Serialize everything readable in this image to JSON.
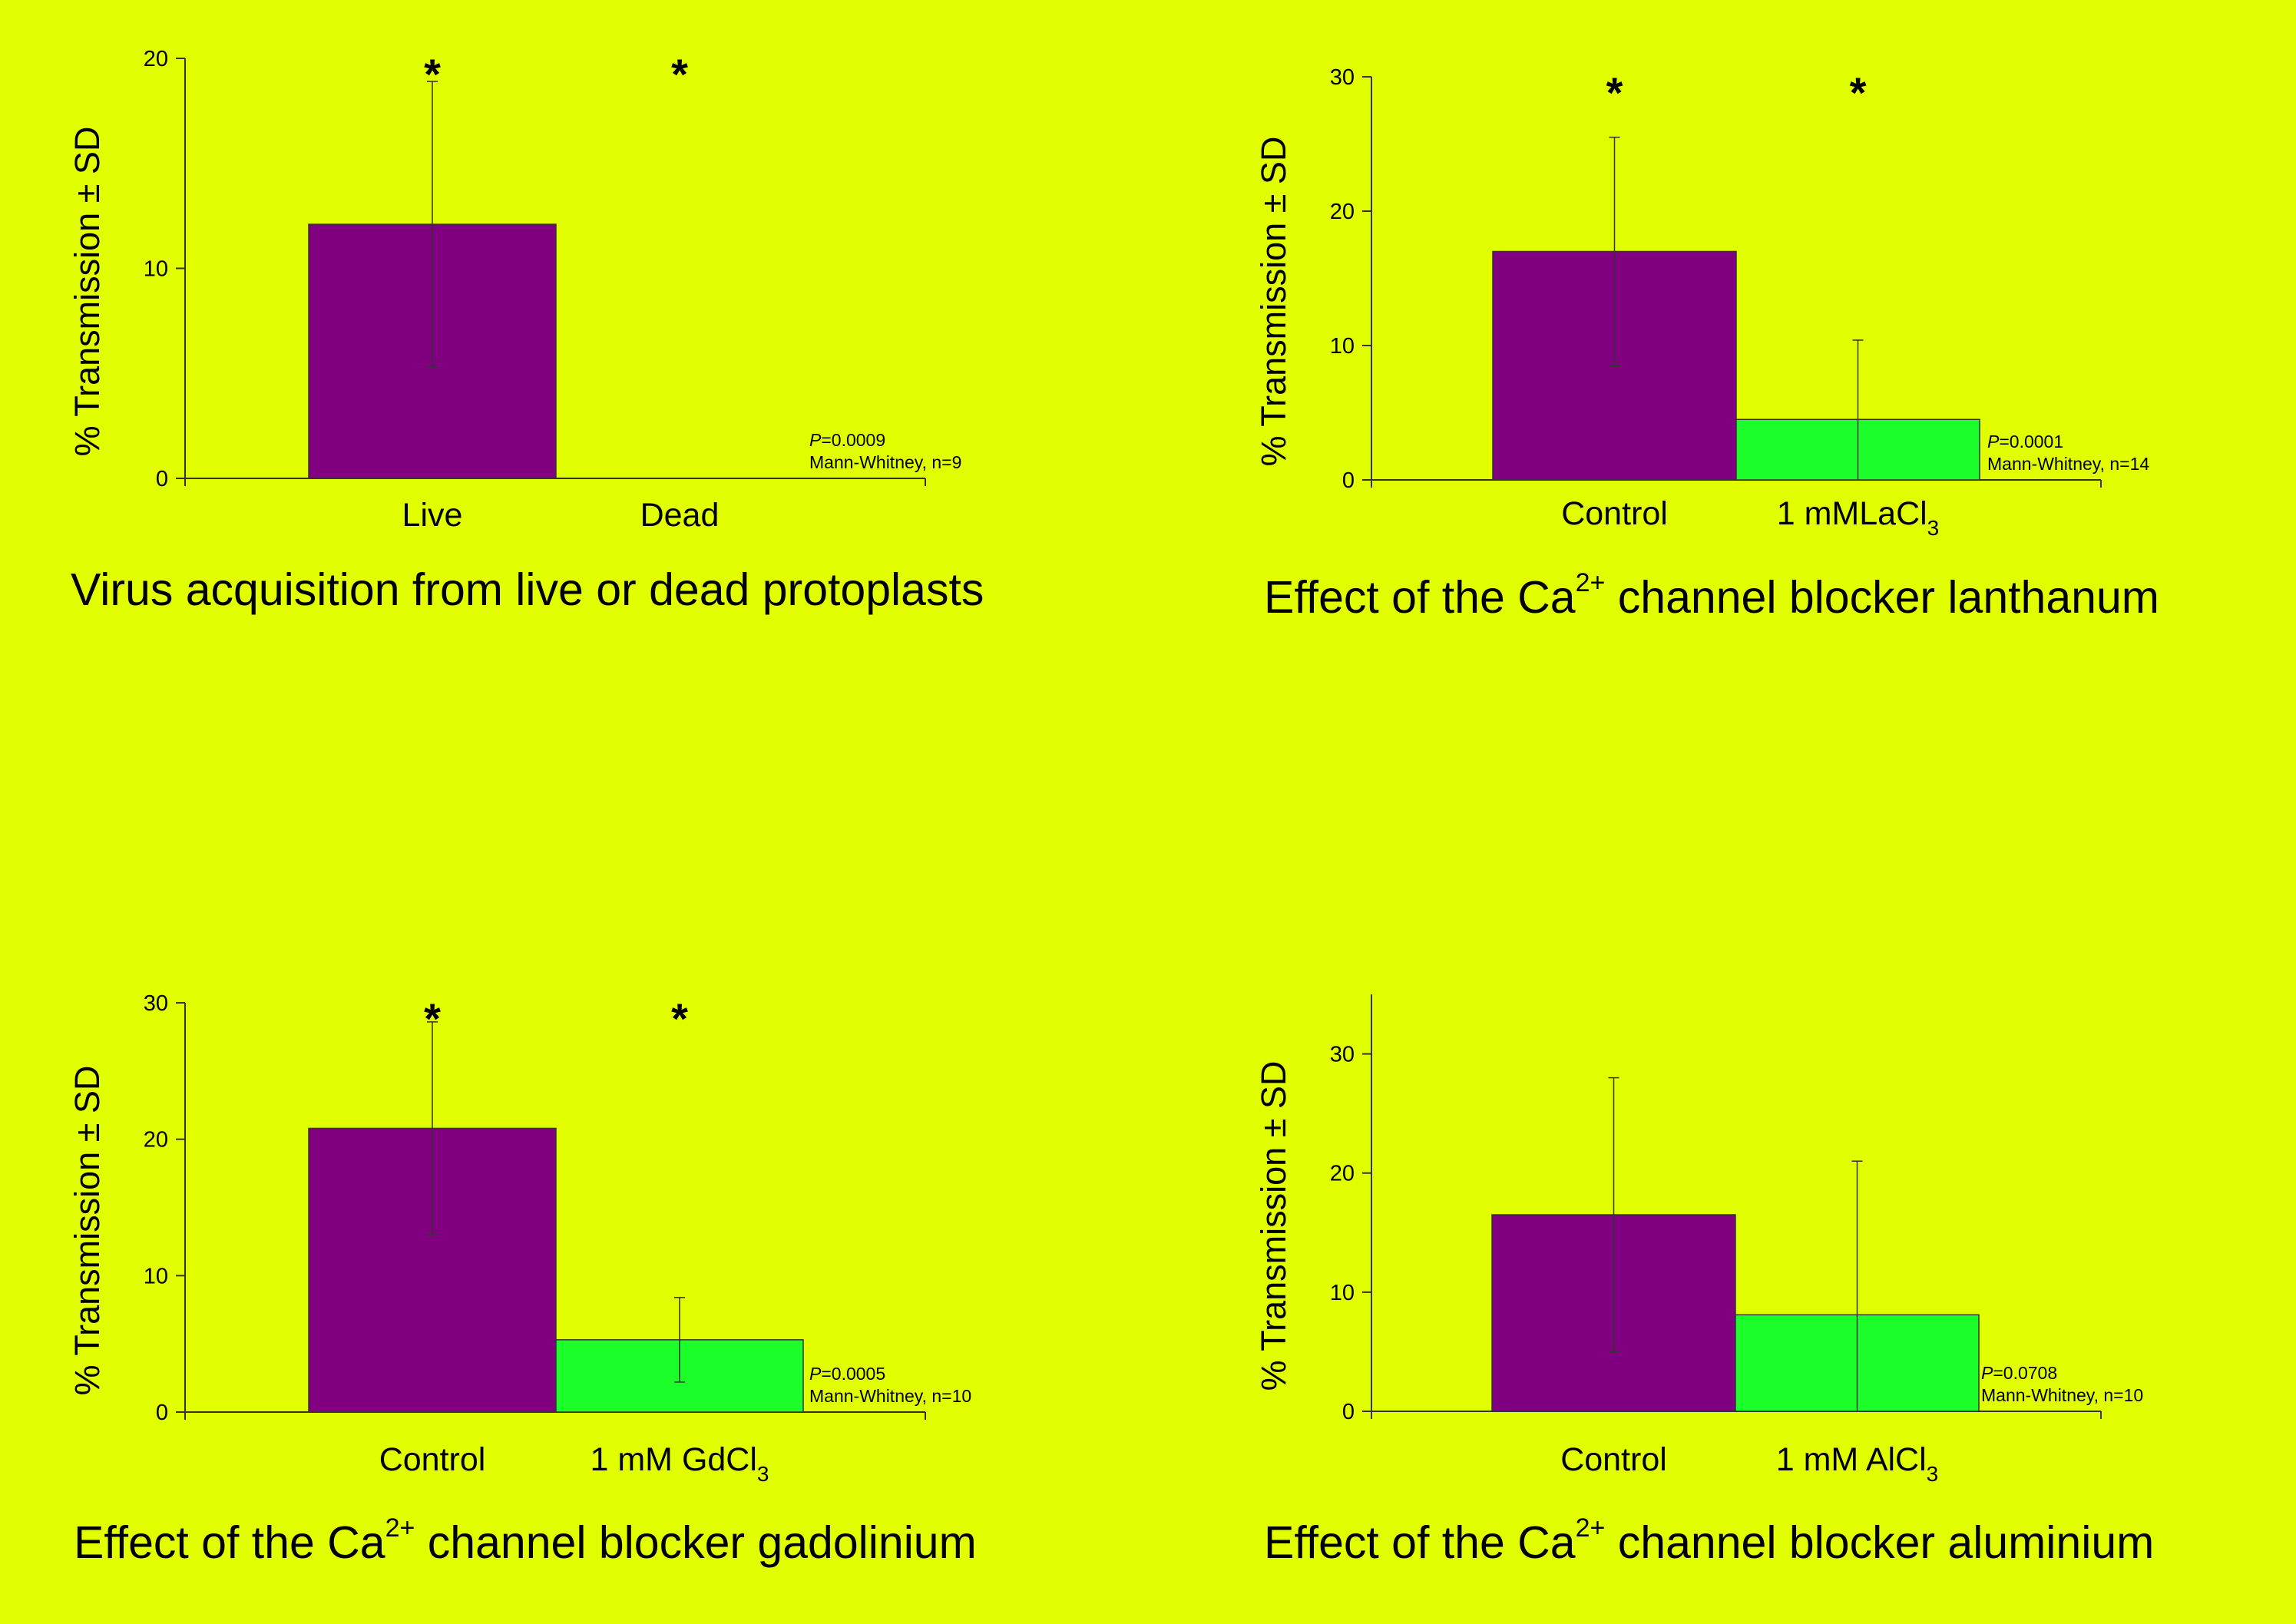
{
  "colors": {
    "background": "#e2ff00",
    "bar_primary": "#800080",
    "bar_secondary": "#1dff2a",
    "axis": "#333333"
  },
  "chart_data": [
    {
      "type": "bar",
      "categories": [
        "Live",
        "Dead"
      ],
      "values": [
        12.1,
        0
      ],
      "error_sd": [
        6.8,
        0
      ],
      "significance": [
        "*",
        "*"
      ],
      "ylabel": "% Transmission ± SD",
      "ylim": [
        0,
        20
      ],
      "yticks": [
        0,
        10,
        20
      ],
      "stats_p": "P",
      "stats_p_value": "=0.0009",
      "stats_test": "Mann-Whitney, n=9",
      "title": "Virus acquisition from live or dead protoplasts",
      "grid": false,
      "legend": "none"
    },
    {
      "type": "bar",
      "categories": [
        "Control",
        "1 mMLaCl3"
      ],
      "category_parts": [
        {
          "main": "Control",
          "sub": ""
        },
        {
          "main": "1 mMLaCl",
          "sub": "3"
        }
      ],
      "values": [
        17.0,
        4.5
      ],
      "error_sd": [
        8.5,
        5.9
      ],
      "significance": [
        "*",
        "*"
      ],
      "ylabel": "% Transmission ± SD",
      "ylim": [
        0,
        30
      ],
      "yticks": [
        0,
        10,
        20,
        30
      ],
      "stats_p": "P",
      "stats_p_value": "=0.0001",
      "stats_test": "Mann-Whitney, n=14",
      "title": "Effect of the Ca2+ channel blocker lanthanum",
      "title_parts": {
        "before": "Effect of the Ca",
        "sup": "2+",
        "after": " channel blocker lanthanum"
      },
      "grid": false,
      "legend": "none"
    },
    {
      "type": "bar",
      "categories": [
        "Control",
        "1 mM GdCl3"
      ],
      "category_parts": [
        {
          "main": "Control",
          "sub": ""
        },
        {
          "main": "1 mM GdCl",
          "sub": "3"
        }
      ],
      "values": [
        20.8,
        5.3
      ],
      "error_sd": [
        7.8,
        3.1
      ],
      "significance": [
        "*",
        "*"
      ],
      "ylabel": "% Transmission ± SD",
      "ylim": [
        0,
        30
      ],
      "yticks": [
        0,
        10,
        20,
        30
      ],
      "stats_p": "P",
      "stats_p_value": "=0.0005",
      "stats_test": "Mann-Whitney, n=10",
      "title": "Effect of the Ca2+ channel blocker gadolinium",
      "title_parts": {
        "before": "Effect of the Ca",
        "sup": "2+",
        "after": " channel blocker gadolinium"
      },
      "grid": false,
      "legend": "none"
    },
    {
      "type": "bar",
      "categories": [
        "Control",
        "1 mM AlCl3"
      ],
      "category_parts": [
        {
          "main": "Control",
          "sub": ""
        },
        {
          "main": "1 mM AlCl",
          "sub": "3"
        }
      ],
      "values": [
        16.5,
        8.1
      ],
      "error_sd": [
        11.5,
        12.9
      ],
      "significance": [
        "",
        ""
      ],
      "ylabel": "% Transmission ± SD",
      "ylim": [
        0,
        35
      ],
      "yticks": [
        0,
        10,
        20,
        30
      ],
      "stats_p": "P",
      "stats_p_value": "=0.0708",
      "stats_test": "Mann-Whitney, n=10",
      "title": "Effect of the Ca2+ channel blocker aluminium",
      "title_parts": {
        "before": "Effect of the Ca",
        "sup": "2+",
        "after": " channel blocker aluminium"
      },
      "grid": false,
      "legend": "none"
    }
  ]
}
